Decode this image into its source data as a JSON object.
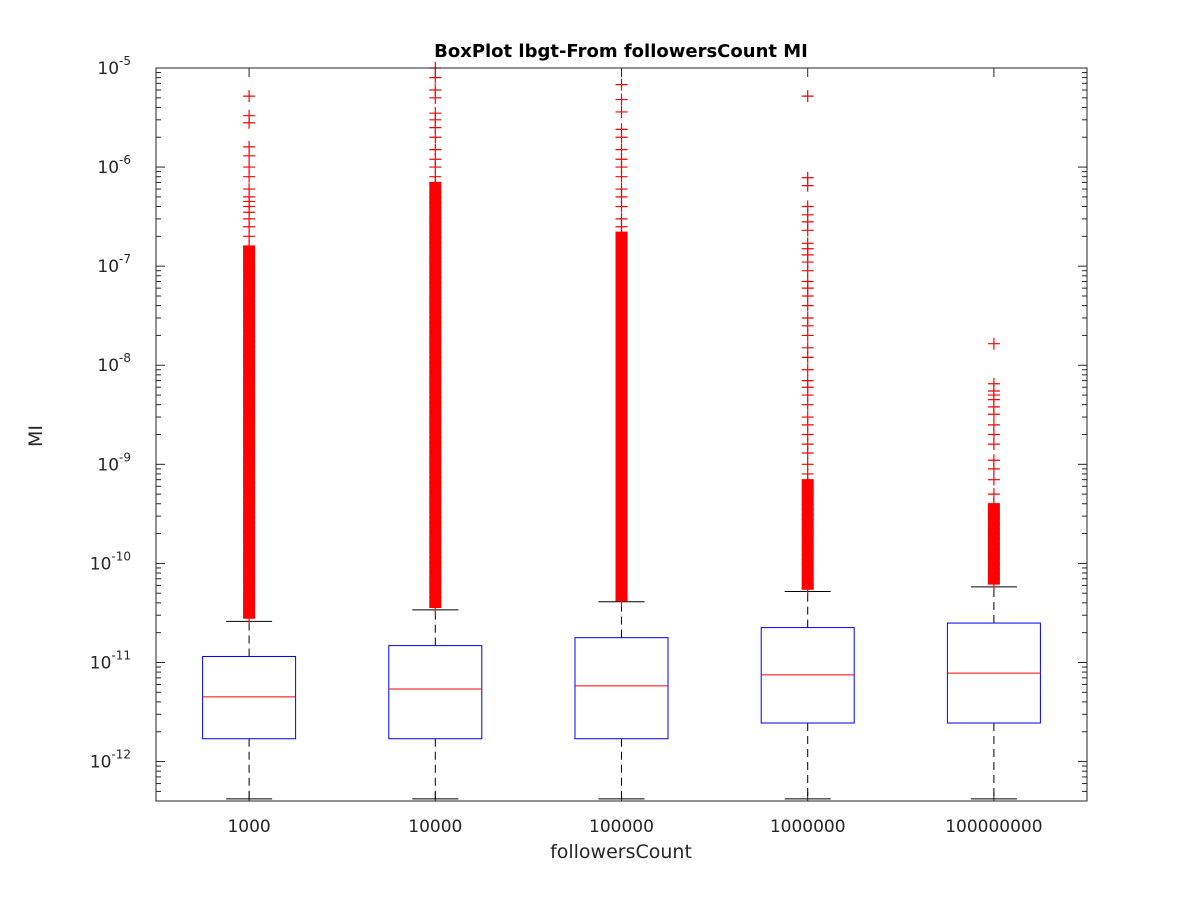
{
  "chart_data": {
    "type": "boxplot",
    "title": "BoxPlot lbgt-From followersCount MI",
    "xlabel": "followersCount",
    "ylabel": "MI",
    "y_scale": "log",
    "ylim": [
      4e-13,
      1e-05
    ],
    "y_ticks": [
      1e-12,
      1e-11,
      1e-10,
      1e-09,
      1e-08,
      1e-07,
      1e-06,
      1e-05
    ],
    "y_tick_labels": [
      {
        "base": "10",
        "exp": "-12"
      },
      {
        "base": "10",
        "exp": "-11"
      },
      {
        "base": "10",
        "exp": "-10"
      },
      {
        "base": "10",
        "exp": "-9"
      },
      {
        "base": "10",
        "exp": "-8"
      },
      {
        "base": "10",
        "exp": "-7"
      },
      {
        "base": "10",
        "exp": "-6"
      },
      {
        "base": "10",
        "exp": "-5"
      }
    ],
    "categories": [
      "1000",
      "10000",
      "100000",
      "1000000",
      "100000000"
    ],
    "boxes": [
      {
        "category": "1000",
        "whisker_low": 4.2e-13,
        "q1": 1.7e-12,
        "median": 4.5e-12,
        "q3": 1.15e-11,
        "whisker_high": 2.6e-11,
        "outliers_dense_range": [
          2.8e-11,
          1.6e-07
        ],
        "outliers": [
          2e-07,
          2.5e-07,
          3e-07,
          3.5e-07,
          4e-07,
          4.5e-07,
          5e-07,
          6e-07,
          8e-07,
          1e-06,
          1.3e-06,
          1.6e-06,
          2.8e-06,
          3.3e-06,
          5.2e-06
        ]
      },
      {
        "category": "10000",
        "whisker_low": 4.2e-13,
        "q1": 1.7e-12,
        "median": 5.4e-12,
        "q3": 1.48e-11,
        "whisker_high": 3.4e-11,
        "outliers_dense_range": [
          3.6e-11,
          7e-07
        ],
        "outliers": [
          8e-07,
          1e-06,
          1.2e-06,
          1.5e-06,
          2e-06,
          2.5e-06,
          3e-06,
          3.5e-06,
          5e-06,
          6e-06,
          8e-06,
          1e-05
        ]
      },
      {
        "category": "100000",
        "whisker_low": 4.2e-13,
        "q1": 1.7e-12,
        "median": 5.8e-12,
        "q3": 1.78e-11,
        "whisker_high": 4.1e-11,
        "outliers_dense_range": [
          4.2e-11,
          2.2e-07
        ],
        "outliers": [
          2.5e-07,
          3e-07,
          4e-07,
          5e-07,
          6e-07,
          8e-07,
          1e-06,
          1.2e-06,
          1.5e-06,
          2e-06,
          2.4e-06,
          3.6e-06,
          4.8e-06,
          6.8e-06
        ]
      },
      {
        "category": "1000000",
        "whisker_low": 4.2e-13,
        "q1": 2.45e-12,
        "median": 7.5e-12,
        "q3": 2.25e-11,
        "whisker_high": 5.2e-11,
        "outliers_dense_range": [
          5.5e-11,
          7e-10
        ],
        "outliers": [
          8e-10,
          1e-09,
          1.3e-09,
          1.6e-09,
          2e-09,
          2.5e-09,
          3e-09,
          4e-09,
          5e-09,
          6e-09,
          7e-09,
          9e-09,
          1.2e-08,
          1.5e-08,
          2e-08,
          2.5e-08,
          3e-08,
          4e-08,
          5e-08,
          6e-08,
          7e-08,
          9e-08,
          1.1e-07,
          1.3e-07,
          1.5e-07,
          1.7e-07,
          2.3e-07,
          2.8e-07,
          3.3e-07,
          4e-07,
          6.5e-07,
          7.8e-07,
          5.2e-06
        ]
      },
      {
        "category": "100000000",
        "whisker_low": 4.2e-13,
        "q1": 2.45e-12,
        "median": 7.8e-12,
        "q3": 2.5e-11,
        "whisker_high": 5.8e-11,
        "outliers_dense_range": [
          6.2e-11,
          4e-10
        ],
        "outliers": [
          5e-10,
          7e-10,
          9e-10,
          1.1e-09,
          1.6e-09,
          2e-09,
          2.5e-09,
          3.2e-09,
          3.8e-09,
          4.5e-09,
          5e-09,
          5.5e-09,
          6.5e-09,
          1.65e-08
        ]
      }
    ],
    "colors": {
      "box": "#0000ff",
      "median": "#ff0000",
      "outlier": "#ff0000",
      "whisker": "#000000",
      "axes": "#262626"
    },
    "grid": false,
    "legend": "none"
  }
}
